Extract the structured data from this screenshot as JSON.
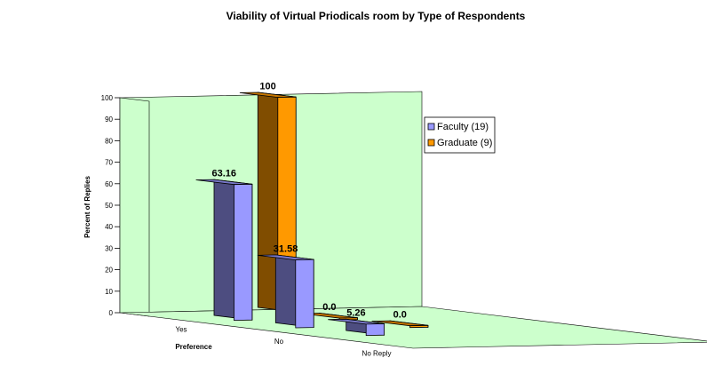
{
  "chart_data": {
    "type": "bar",
    "title": "Viability of Virtual Priodicals room by Type of Respondents",
    "xlabel": "Preference",
    "ylabel": "Percent of Replies",
    "categories": [
      "Yes",
      "No",
      "No Reply"
    ],
    "series": [
      {
        "name": "Faculty (19)",
        "values": [
          63.16,
          31.58,
          5.26
        ],
        "labels": [
          "63.16",
          "31.58",
          "5.26"
        ],
        "color": "#9999ff"
      },
      {
        "name": "Graduate (9)",
        "values": [
          100,
          0,
          0
        ],
        "labels": [
          "100",
          "0.0",
          "0.0"
        ],
        "color": "#ff9900"
      }
    ],
    "ylim": [
      0,
      100
    ],
    "yticks": [
      "0",
      "10",
      "20",
      "30",
      "40",
      "50",
      "60",
      "70",
      "80",
      "90",
      "100"
    ],
    "grid": false,
    "style": "3d-clustered-column",
    "wall_color": "#ccffcc",
    "legend_position": "right"
  }
}
